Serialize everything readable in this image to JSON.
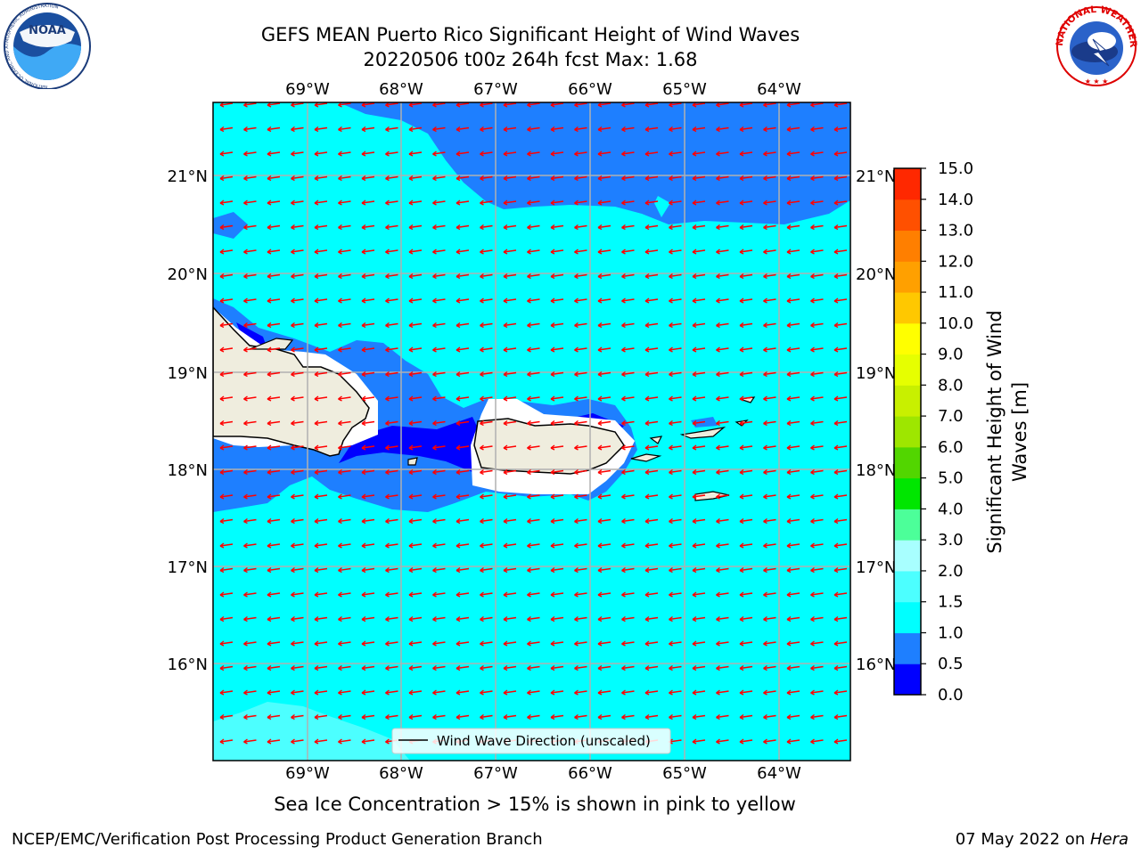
{
  "header": {
    "title_line1": "GEFS MEAN Puerto Rico Significant Height of Wind Waves",
    "title_line2": "20220506 t00z 264h fcst   Max: 1.68"
  },
  "logos": {
    "noaa_text": "NOAA",
    "noaa_ring_text": "NATIONAL OCEANIC AND ATMOSPHERIC ADMINISTRATION",
    "noaa_ring_bottom": "U.S. DEPARTMENT OF COMMERCE",
    "nws_ring_text": "NATIONAL WEATHER SERVICE"
  },
  "map": {
    "lon_labels": [
      "69°W",
      "68°W",
      "67°W",
      "66°W",
      "65°W",
      "64°W"
    ],
    "lat_labels": [
      "21°N",
      "20°N",
      "19°N",
      "18°N",
      "17°N",
      "16°N"
    ],
    "legend_label": "Wind Wave Direction (unscaled)",
    "arrow_color": "#ff0000"
  },
  "colorbar": {
    "label_line1": "Significant Height of Wind",
    "label_line2": "Waves [m]",
    "ticks": [
      "0.0",
      "0.5",
      "1.0",
      "1.5",
      "2.0",
      "3.0",
      "4.0",
      "5.0",
      "6.0",
      "7.0",
      "8.0",
      "9.0",
      "10.0",
      "11.0",
      "12.0",
      "13.0",
      "14.0",
      "15.0"
    ],
    "colors": [
      "#0000ff",
      "#1e7fff",
      "#00ffff",
      "#4cffff",
      "#a8ffff",
      "#4cff99",
      "#00e600",
      "#52d600",
      "#9ee600",
      "#c8f000",
      "#e6ff00",
      "#ffff00",
      "#ffc800",
      "#ffa000",
      "#ff7f00",
      "#ff5000",
      "#ff2800"
    ]
  },
  "caption": "Sea Ice Concentration > 15% is shown in pink to yellow",
  "footer": {
    "left": "NCEP/EMC/Verification Post Processing Product Generation Branch",
    "right_date": "07 May 2022 on ",
    "right_host": "Hera"
  }
}
